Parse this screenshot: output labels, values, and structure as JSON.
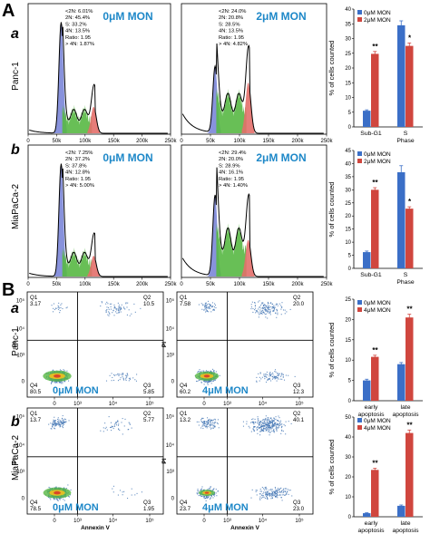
{
  "panels": {
    "A": {
      "letter": "A",
      "rows": [
        {
          "sub": "a",
          "cell": "Panc-1",
          "histograms": [
            {
              "mon": "0μM MON",
              "stats": [
                "<2N: 6.01%",
                "2N: 45.4%",
                "S: 33.2%",
                "4N: 13.5%",
                "Ratio: 1.95",
                "> 4N: 1.87%"
              ]
            },
            {
              "mon": "2μM MON",
              "stats": [
                "<2N: 24.0%",
                "2N: 20.8%",
                "S: 28.5%",
                "4N: 13.5%",
                "Ratio: 1.95",
                "> 4N: 4.82%"
              ]
            }
          ]
        },
        {
          "sub": "b",
          "cell": "MiaPaCa-2",
          "histograms": [
            {
              "mon": "0μM MON",
              "stats": [
                "<2N: 7.25%",
                "2N: 37.2%",
                "S: 37.8%",
                "4N: 12.8%",
                "Ratio: 1.95",
                "> 4N: 5.00%"
              ]
            },
            {
              "mon": "2μM MON",
              "stats": [
                "<2N: 29.4%",
                "2N: 20.0%",
                "S: 28.9%",
                "4N: 16.1%",
                "Ratio: 1.95",
                "> 4N: 1.40%"
              ]
            }
          ]
        }
      ],
      "x_ticks": [
        "0",
        "50k",
        "100k",
        "150k",
        "200k",
        "250k"
      ]
    },
    "B": {
      "letter": "B",
      "rows": [
        {
          "sub": "a",
          "cell": "Panc-1",
          "plots": [
            {
              "mon": "0μM MON",
              "q1_label": "Q1",
              "q1": "3.17",
              "q2_label": "Q2",
              "q2": "10.5",
              "q3_label": "Q3",
              "q3": "5.85",
              "q4_label": "Q4",
              "q4": "80.5"
            },
            {
              "mon": "4μM MON",
              "q1_label": "Q1",
              "q1": "7.58",
              "q2_label": "Q2",
              "q2": "20.0",
              "q3_label": "Q3",
              "q3": "12.3",
              "q4_label": "Q4",
              "q4": "60.2"
            }
          ]
        },
        {
          "sub": "b",
          "cell": "MiaPaCa-2",
          "plots": [
            {
              "mon": "0μM MON",
              "q1_label": "Q1",
              "q1": "13.7",
              "q2_label": "Q2",
              "q2": "5.77",
              "q3_label": "Q3",
              "q3": "1.95",
              "q4_label": "Q4",
              "q4": "78.5"
            },
            {
              "mon": "4μM MON",
              "q1_label": "Q1",
              "q1": "13.2",
              "q2_label": "Q2",
              "q2": "40.1",
              "q3_label": "Q3",
              "q3": "23.0",
              "q4_label": "Q4",
              "q4": "23.7"
            }
          ]
        }
      ],
      "x_label": "Annexin V",
      "y_label": "PI",
      "x_ticks": [
        "0",
        "10³",
        "10⁴",
        "10⁵"
      ],
      "y_ticks": [
        "0",
        "10³",
        "10⁴",
        "10⁵"
      ]
    }
  },
  "colors": {
    "control": "#3b6fc7",
    "treated": "#d0463e",
    "g1_fill": "#7b86d8",
    "s_fill": "#58b844",
    "g2_fill": "#e36f6a",
    "mon_label": "#1e88c8",
    "scatter": "#3a6fb0"
  },
  "chart_data": [
    {
      "type": "bar",
      "ylabel": "% of cells counted",
      "categories": [
        "Sub-G1",
        "S Phase"
      ],
      "ylim": [
        0,
        40
      ],
      "yticks": [
        "0",
        "5",
        "10",
        "15",
        "20",
        "25",
        "30",
        "35",
        "40"
      ],
      "series": [
        {
          "name": "0μM MON",
          "values": [
            5.5,
            34.5
          ],
          "errors": [
            0.3,
            1.5
          ]
        },
        {
          "name": "2μM MON",
          "values": [
            24.8,
            27.5
          ],
          "errors": [
            0.8,
            1.0
          ]
        }
      ],
      "significance": [
        "**",
        "*"
      ]
    },
    {
      "type": "bar",
      "ylabel": "% of cells counted",
      "categories": [
        "Sub-G1",
        "S Phase"
      ],
      "ylim": [
        0,
        45
      ],
      "yticks": [
        "0",
        "5",
        "10",
        "15",
        "20",
        "25",
        "30",
        "35",
        "40",
        "45"
      ],
      "series": [
        {
          "name": "0μM MON",
          "values": [
            6.2,
            36.7
          ],
          "errors": [
            0.4,
            2.5
          ]
        },
        {
          "name": "2μM MON",
          "values": [
            30.0,
            22.8
          ],
          "errors": [
            0.8,
            0.7
          ]
        }
      ],
      "significance": [
        "**",
        "*"
      ]
    },
    {
      "type": "bar",
      "ylabel": "% of cells counted",
      "categories": [
        "early apoptosis",
        "late apoptosis"
      ],
      "ylim": [
        0,
        25
      ],
      "yticks": [
        "0",
        "5",
        "10",
        "15",
        "20",
        "25"
      ],
      "series": [
        {
          "name": "0μM MON",
          "values": [
            5.0,
            9.0
          ],
          "errors": [
            0.3,
            0.4
          ]
        },
        {
          "name": "4μM MON",
          "values": [
            10.8,
            20.5
          ],
          "errors": [
            0.4,
            0.8
          ]
        }
      ],
      "significance": [
        "**",
        "**"
      ]
    },
    {
      "type": "bar",
      "ylabel": "% of cells counted",
      "categories": [
        "early apoptosis",
        "late apoptosis"
      ],
      "ylim": [
        0,
        50
      ],
      "yticks": [
        "0",
        "10",
        "20",
        "30",
        "40",
        "50"
      ],
      "series": [
        {
          "name": "0μM MON",
          "values": [
            1.8,
            5.5
          ],
          "errors": [
            0.2,
            0.4
          ]
        },
        {
          "name": "4μM MON",
          "values": [
            23.5,
            42.0
          ],
          "errors": [
            0.8,
            1.5
          ]
        }
      ],
      "significance": [
        "**",
        "**"
      ]
    }
  ]
}
